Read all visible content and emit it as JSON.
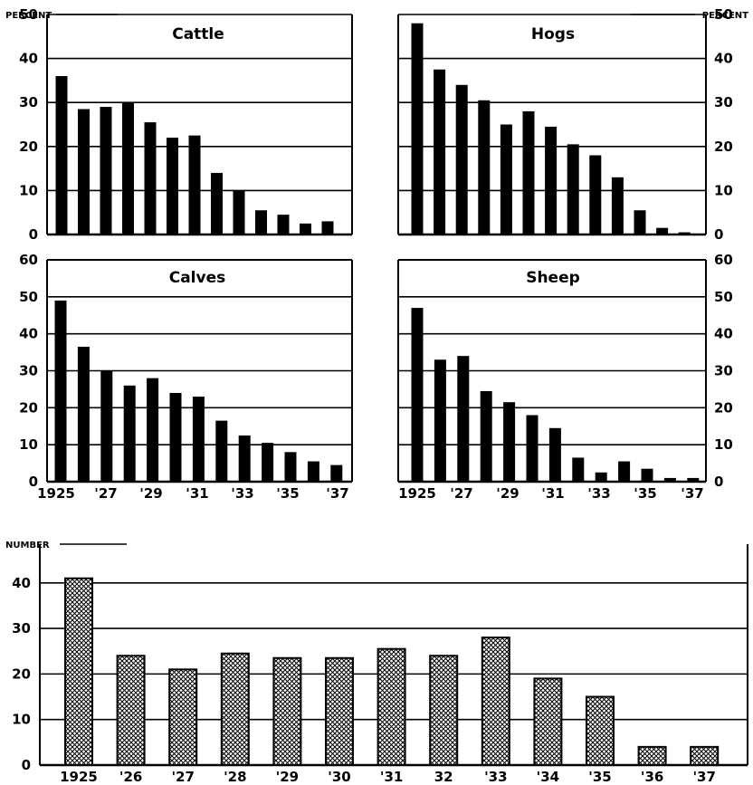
{
  "figure": {
    "percent_label": "PERCENT",
    "number_label": "NUMBER"
  },
  "chart_data": [
    {
      "type": "bar",
      "title": "Cattle",
      "ylabel": "PERCENT",
      "x": [
        1925,
        1926,
        1927,
        1928,
        1929,
        1930,
        1931,
        1932,
        1933,
        1934,
        1935,
        1936,
        1937
      ],
      "values": [
        36,
        28.5,
        29,
        30,
        25.5,
        22,
        22.5,
        14,
        10,
        5.5,
        4.5,
        2.5,
        3
      ],
      "yticks": [
        0,
        10,
        20,
        30,
        40,
        50
      ],
      "ylim": [
        0,
        50
      ],
      "tick_labels_y": [
        "0",
        "10",
        "20",
        "30",
        "40",
        "50"
      ]
    },
    {
      "type": "bar",
      "title": "Hogs",
      "ylabel": "PERCENT",
      "x": [
        1925,
        1926,
        1927,
        1928,
        1929,
        1930,
        1931,
        1932,
        1933,
        1934,
        1935,
        1936,
        1937
      ],
      "values": [
        48,
        37.5,
        34,
        30.5,
        25,
        28,
        24.5,
        20.5,
        18,
        13,
        5.5,
        1.5,
        0.5
      ],
      "yticks": [
        0,
        10,
        20,
        30,
        40,
        50
      ],
      "ylim": [
        0,
        50
      ],
      "tick_labels_y": [
        "0",
        "10",
        "20",
        "30",
        "40",
        "50"
      ]
    },
    {
      "type": "bar",
      "title": "Calves",
      "x": [
        1925,
        1926,
        1927,
        1928,
        1929,
        1930,
        1931,
        1932,
        1933,
        1934,
        1935,
        1936,
        1937
      ],
      "values": [
        49,
        36.5,
        30,
        26,
        28,
        24,
        23,
        16.5,
        12.5,
        10.5,
        8,
        5.5,
        4.5
      ],
      "yticks": [
        0,
        10,
        20,
        30,
        40,
        50,
        60
      ],
      "ylim": [
        0,
        60
      ],
      "tick_labels_y": [
        "0",
        "10",
        "20",
        "30",
        "40",
        "50",
        "60"
      ],
      "tick_labels_x": [
        "1925",
        "'27",
        "'29",
        "'31",
        "'33",
        "'35",
        "'37"
      ]
    },
    {
      "type": "bar",
      "title": "Sheep",
      "x": [
        1925,
        1926,
        1927,
        1928,
        1929,
        1930,
        1931,
        1932,
        1933,
        1934,
        1935,
        1936,
        1937
      ],
      "values": [
        47,
        33,
        34,
        24.5,
        21.5,
        18,
        14.5,
        6.5,
        2.5,
        5.5,
        3.5,
        1,
        1
      ],
      "yticks": [
        0,
        10,
        20,
        30,
        40,
        50,
        60
      ],
      "ylim": [
        0,
        60
      ],
      "tick_labels_y": [
        "0",
        "10",
        "20",
        "30",
        "40",
        "50",
        "60"
      ],
      "tick_labels_x": [
        "1925",
        "'27",
        "'29",
        "'31",
        "'33",
        "'35",
        "'37"
      ]
    },
    {
      "type": "bar",
      "ylabel": "NUMBER",
      "categories": [
        "1925",
        "'26",
        "'27",
        "'28",
        "'29",
        "'30",
        "'31",
        "32",
        "'33",
        "'34",
        "'35",
        "'36",
        "'37"
      ],
      "values": [
        41,
        24,
        21,
        24.5,
        23.5,
        23.5,
        25.5,
        24,
        28,
        19,
        15,
        4,
        4
      ],
      "yticks": [
        0,
        10,
        20,
        30,
        40
      ],
      "ylim": [
        0,
        50
      ],
      "tick_labels_y": [
        "0",
        "10",
        "20",
        "30",
        "40"
      ],
      "pattern": "crosshatch"
    }
  ]
}
